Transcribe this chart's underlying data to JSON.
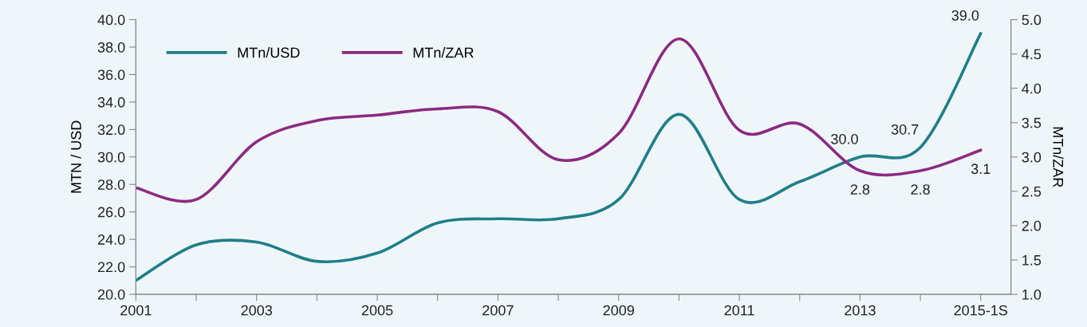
{
  "chart_data": {
    "type": "line",
    "categories": [
      "2001",
      null,
      "2003",
      null,
      "2005",
      null,
      "2007",
      null,
      "2009",
      null,
      "2011",
      null,
      "2013",
      null,
      "2015-1S"
    ],
    "series": [
      {
        "name": "MTn/USD",
        "color": "#1f7f8a",
        "values": [
          21.0,
          23.6,
          23.8,
          22.4,
          23.0,
          25.2,
          25.5,
          25.5,
          26.9,
          33.1,
          26.9,
          28.2,
          30.0,
          30.7,
          39.0
        ],
        "value_labels": [
          null,
          null,
          null,
          null,
          null,
          null,
          null,
          null,
          null,
          null,
          null,
          null,
          "30.0",
          "30.7",
          "39.0"
        ]
      },
      {
        "name": "MTn/ZAR",
        "color": "#8c2a82",
        "axis": "y2",
        "values": [
          2.55,
          2.38,
          3.22,
          3.53,
          3.61,
          3.7,
          3.66,
          2.96,
          3.34,
          4.72,
          3.39,
          3.48,
          2.8,
          2.8,
          3.1
        ],
        "value_labels": [
          null,
          null,
          null,
          null,
          null,
          null,
          null,
          null,
          null,
          null,
          null,
          null,
          "2.8",
          "2.8",
          "3.1"
        ]
      }
    ],
    "ylabel": "MTN / USD",
    "y2label": "MTn/ZAR",
    "ylim": [
      20,
      40
    ],
    "yticks": [
      {
        "value": 20,
        "label": "20.0"
      },
      {
        "value": 22,
        "label": "22.0"
      },
      {
        "value": 24,
        "label": "24.0"
      },
      {
        "value": 26,
        "label": "26.0"
      },
      {
        "value": 28,
        "label": "28.0"
      },
      {
        "value": 30,
        "label": "30.0"
      },
      {
        "value": 32,
        "label": "32.0"
      },
      {
        "value": 34,
        "label": "34.0"
      },
      {
        "value": 36,
        "label": "36.0"
      },
      {
        "value": 38,
        "label": "38.0"
      },
      {
        "value": 40,
        "label": "40.0"
      }
    ],
    "y2lim": [
      1,
      5
    ],
    "y2ticks": [
      {
        "value": 1,
        "label": "1.0"
      },
      {
        "value": 1.5,
        "label": "1.5"
      },
      {
        "value": 2,
        "label": "2.0"
      },
      {
        "value": 2.5,
        "label": "2.5"
      },
      {
        "value": 3,
        "label": "3.0"
      },
      {
        "value": 3.5,
        "label": "3.5"
      },
      {
        "value": 4,
        "label": "4.0"
      },
      {
        "value": 4.5,
        "label": "4.5"
      },
      {
        "value": 5,
        "label": "5.0"
      }
    ],
    "legend": "top left",
    "grid": false,
    "marker": "none",
    "line_style": "solid"
  }
}
